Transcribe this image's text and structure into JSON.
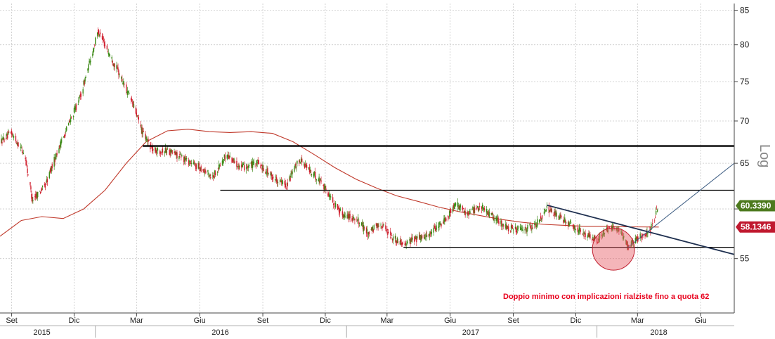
{
  "chart_data": {
    "type": "candlestick",
    "scale": "log",
    "scale_label": "Log",
    "ylim": [
      50,
      86
    ],
    "y_ticks": [
      55,
      60,
      65,
      70,
      75,
      80,
      85
    ],
    "y_tick_labels": [
      "55",
      "",
      "65",
      "70",
      "75",
      "80",
      "85"
    ],
    "grid": true,
    "xlim": [
      "2015-08-15",
      "2018-07-20"
    ],
    "x_ticks": [
      {
        "label": "Set",
        "date": "2015-09-01"
      },
      {
        "label": "Dic",
        "date": "2015-12-01"
      },
      {
        "label": "Mar",
        "date": "2016-03-01"
      },
      {
        "label": "Giu",
        "date": "2016-06-01"
      },
      {
        "label": "Set",
        "date": "2016-09-01"
      },
      {
        "label": "Dic",
        "date": "2016-12-01"
      },
      {
        "label": "Mar",
        "date": "2017-03-01"
      },
      {
        "label": "Giu",
        "date": "2017-06-01"
      },
      {
        "label": "Set",
        "date": "2017-09-01"
      },
      {
        "label": "Dic",
        "date": "2017-12-01"
      },
      {
        "label": "Mar",
        "date": "2018-03-01"
      },
      {
        "label": "Giu",
        "date": "2018-06-01"
      }
    ],
    "years": [
      {
        "label": "2015",
        "date": "2015-10-15"
      },
      {
        "label": "2016",
        "date": "2016-07-01"
      },
      {
        "label": "2017",
        "date": "2017-07-01"
      },
      {
        "label": "2018",
        "date": "2018-04-01"
      }
    ],
    "price_path": [
      [
        "2015-08-15",
        67.5
      ],
      [
        "2015-09-01",
        68.5
      ],
      [
        "2015-09-20",
        66.0
      ],
      [
        "2015-10-01",
        61.0
      ],
      [
        "2015-10-20",
        62.5
      ],
      [
        "2015-11-05",
        66.0
      ],
      [
        "2015-11-25",
        70.0
      ],
      [
        "2015-12-10",
        73.0
      ],
      [
        "2015-12-25",
        78.0
      ],
      [
        "2016-01-05",
        82.0
      ],
      [
        "2016-01-20",
        79.0
      ],
      [
        "2016-02-05",
        76.0
      ],
      [
        "2016-02-25",
        72.0
      ],
      [
        "2016-03-10",
        68.5
      ],
      [
        "2016-03-25",
        66.5
      ],
      [
        "2016-04-15",
        66.5
      ],
      [
        "2016-05-10",
        65.5
      ],
      [
        "2016-06-01",
        64.5
      ],
      [
        "2016-06-20",
        63.5
      ],
      [
        "2016-07-10",
        66.0
      ],
      [
        "2016-08-01",
        64.5
      ],
      [
        "2016-08-25",
        65.0
      ],
      [
        "2016-09-15",
        63.5
      ],
      [
        "2016-10-05",
        62.5
      ],
      [
        "2016-10-25",
        65.5
      ],
      [
        "2016-11-10",
        64.0
      ],
      [
        "2016-11-25",
        63.0
      ],
      [
        "2016-12-10",
        61.0
      ],
      [
        "2016-12-25",
        59.5
      ],
      [
        "2017-01-15",
        59.0
      ],
      [
        "2017-02-01",
        57.5
      ],
      [
        "2017-02-20",
        58.5
      ],
      [
        "2017-03-10",
        57.0
      ],
      [
        "2017-03-25",
        56.5
      ],
      [
        "2017-04-15",
        57.0
      ],
      [
        "2017-05-05",
        57.5
      ],
      [
        "2017-05-25",
        59.0
      ],
      [
        "2017-06-10",
        60.5
      ],
      [
        "2017-06-25",
        59.5
      ],
      [
        "2017-07-15",
        60.3
      ],
      [
        "2017-08-05",
        59.0
      ],
      [
        "2017-08-25",
        58.0
      ],
      [
        "2017-09-15",
        57.8
      ],
      [
        "2017-10-05",
        58.5
      ],
      [
        "2017-10-20",
        60.0
      ],
      [
        "2017-11-05",
        59.3
      ],
      [
        "2017-11-25",
        58.3
      ],
      [
        "2017-12-15",
        57.3
      ],
      [
        "2018-01-01",
        56.8
      ],
      [
        "2018-01-20",
        58.2
      ],
      [
        "2018-02-05",
        57.4
      ],
      [
        "2018-02-15",
        56.2
      ],
      [
        "2018-03-05",
        57.2
      ],
      [
        "2018-03-20",
        57.8
      ],
      [
        "2018-04-01",
        60.3
      ]
    ],
    "moving_average": [
      [
        "2015-08-15",
        57.2
      ],
      [
        "2015-09-15",
        58.8
      ],
      [
        "2015-10-15",
        59.2
      ],
      [
        "2015-11-15",
        59.0
      ],
      [
        "2015-12-15",
        60.0
      ],
      [
        "2016-01-15",
        62.0
      ],
      [
        "2016-02-15",
        65.0
      ],
      [
        "2016-03-15",
        67.5
      ],
      [
        "2016-04-15",
        68.8
      ],
      [
        "2016-05-15",
        69.0
      ],
      [
        "2016-06-15",
        68.7
      ],
      [
        "2016-07-15",
        68.6
      ],
      [
        "2016-08-15",
        68.7
      ],
      [
        "2016-09-15",
        68.5
      ],
      [
        "2016-10-15",
        67.5
      ],
      [
        "2016-11-15",
        66.0
      ],
      [
        "2016-12-15",
        64.5
      ],
      [
        "2017-01-15",
        63.2
      ],
      [
        "2017-02-15",
        62.2
      ],
      [
        "2017-03-15",
        61.4
      ],
      [
        "2017-04-15",
        60.8
      ],
      [
        "2017-05-15",
        60.2
      ],
      [
        "2017-06-15",
        59.7
      ],
      [
        "2017-07-15",
        59.3
      ],
      [
        "2017-08-15",
        58.9
      ],
      [
        "2017-09-15",
        58.6
      ],
      [
        "2017-10-15",
        58.4
      ],
      [
        "2017-11-15",
        58.3
      ],
      [
        "2017-12-15",
        58.2
      ],
      [
        "2018-01-15",
        58.2
      ],
      [
        "2018-02-15",
        58.15
      ],
      [
        "2018-04-01",
        58.13
      ]
    ],
    "horizontal_levels": [
      {
        "value": 67.0,
        "from": "2016-03-10",
        "to": "2018-07-20",
        "weight": "thick"
      },
      {
        "value": 62.0,
        "from": "2016-07-01",
        "to": "2018-07-20",
        "weight": "normal"
      },
      {
        "value": 56.1,
        "from": "2017-03-25",
        "to": "2018-07-20",
        "weight": "normal"
      }
    ],
    "trendlines": [
      {
        "from": [
          "2017-10-20",
          60.4
        ],
        "to": [
          "2018-07-20",
          55.4
        ],
        "color": "#1f3050"
      },
      {
        "from": [
          "2018-02-15",
          56.1
        ],
        "to": [
          "2018-07-20",
          65.0
        ],
        "color": "#3a5a80"
      }
    ],
    "highlight": {
      "date": "2018-01-25",
      "value": 56.2
    },
    "annotation": "Doppio minimo con implicazioni rialziste fino a quota 62",
    "last_price": {
      "value": "60.3390",
      "color": "#4d7a1e"
    },
    "ma_value": {
      "value": "58.1346",
      "color": "#c0192f"
    },
    "colors": {
      "up": "#3d8a17",
      "down": "#d0202f",
      "ma": "#c0392b",
      "levels": "#000000"
    }
  }
}
